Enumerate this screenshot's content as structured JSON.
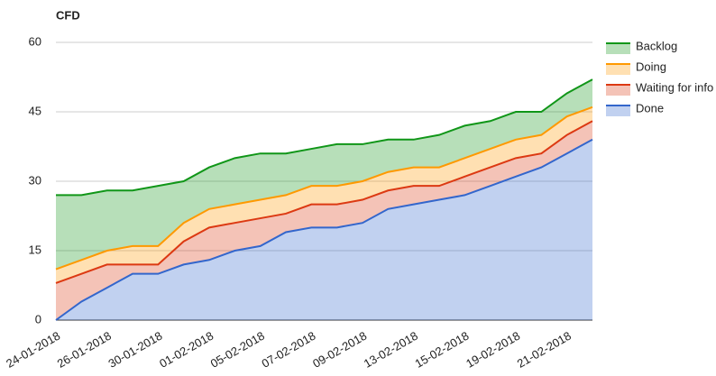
{
  "chart_data": {
    "type": "stacked_area",
    "title": "CFD",
    "categories": [
      "24-01-2018",
      null,
      "26-01-2018",
      null,
      "30-01-2018",
      null,
      "01-02-2018",
      null,
      "05-02-2018",
      null,
      "07-02-2018",
      null,
      "09-02-2018",
      null,
      "13-02-2018",
      null,
      "15-02-2018",
      null,
      "19-02-2018",
      null,
      "21-02-2018",
      null
    ],
    "series": [
      {
        "name": "Backlog",
        "color": "#109618",
        "values": [
          16,
          14,
          13,
          12,
          13,
          9,
          9,
          10,
          10,
          9,
          8,
          9,
          8,
          7,
          6,
          7,
          7,
          6,
          6,
          5,
          5,
          6
        ]
      },
      {
        "name": "Doing",
        "color": "#ff9900",
        "values": [
          3,
          3,
          3,
          4,
          4,
          4,
          4,
          4,
          4,
          4,
          4,
          4,
          4,
          4,
          4,
          4,
          4,
          4,
          4,
          4,
          4,
          3
        ]
      },
      {
        "name": "Waiting for info",
        "color": "#dc3912",
        "values": [
          8,
          6,
          5,
          2,
          2,
          5,
          7,
          6,
          6,
          4,
          5,
          5,
          5,
          4,
          4,
          3,
          4,
          4,
          4,
          3,
          4,
          4
        ]
      },
      {
        "name": "Done",
        "color": "#3366cc",
        "values": [
          0,
          4,
          7,
          10,
          10,
          12,
          13,
          15,
          16,
          19,
          20,
          20,
          21,
          24,
          25,
          26,
          27,
          29,
          31,
          33,
          36,
          39
        ]
      }
    ],
    "ylim": [
      0,
      60
    ],
    "yticks": [
      0,
      15,
      30,
      45,
      60
    ],
    "grid": true,
    "legend": "right"
  }
}
